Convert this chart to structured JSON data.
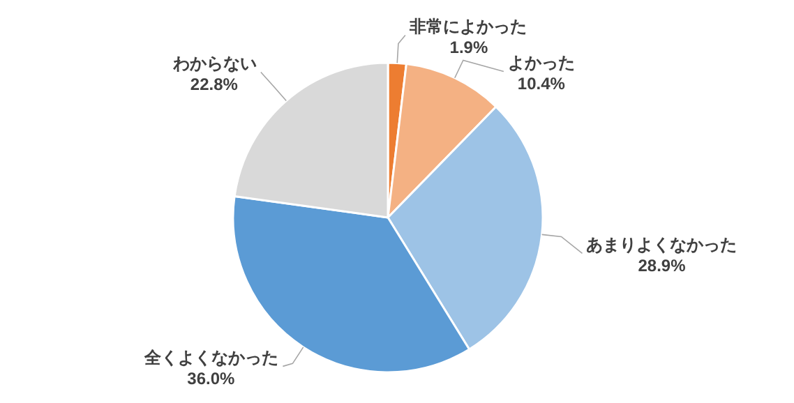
{
  "chart_data": {
    "type": "pie",
    "categories": [
      "非常によかった",
      "よかった",
      "あまりよくなかった",
      "全くよくなかった",
      "わからない"
    ],
    "values": [
      1.9,
      10.4,
      28.9,
      36.0,
      22.8
    ],
    "value_labels": [
      "1.9%",
      "10.4%",
      "28.9%",
      "36.0%",
      "22.8%"
    ],
    "colors": [
      "#ed7d31",
      "#f4b183",
      "#9dc3e6",
      "#5b9bd5",
      "#d9d9d9"
    ]
  }
}
